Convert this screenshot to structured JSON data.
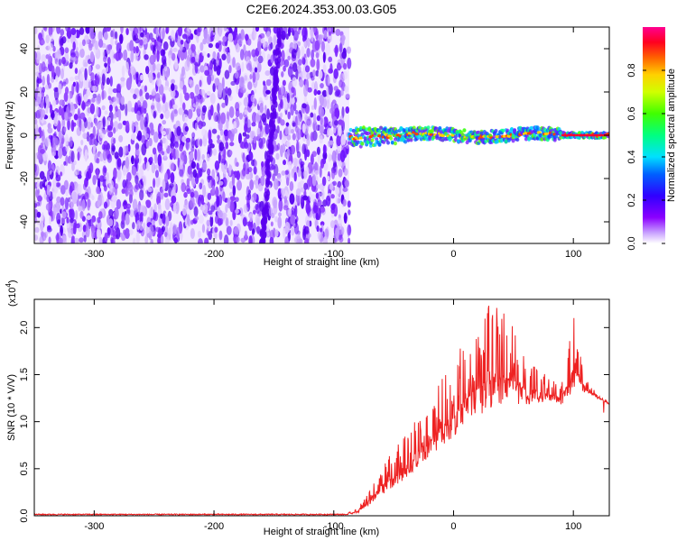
{
  "title": "C2E6.2024.353.00.03.G05",
  "chart_data": [
    {
      "type": "heatmap",
      "xlabel": "Height of straight line (km)",
      "ylabel": "Frequency (Hz)",
      "xlim": [
        -350,
        130
      ],
      "ylim": [
        -50,
        50
      ],
      "xticks": [
        -300,
        -200,
        -100,
        0,
        100
      ],
      "xtick_labels": [
        "-300",
        "-200",
        "-100",
        "0",
        "100"
      ],
      "yticks": [
        -40,
        -20,
        0,
        20,
        40
      ],
      "ytick_labels": [
        "-40",
        "-20",
        "0",
        "20",
        "40"
      ],
      "noise_region_x": [
        -350,
        -87
      ],
      "signal_line_frequency": 0,
      "colorbar": {
        "label": "Normalized spectral amplitude",
        "range": [
          0,
          1
        ],
        "ticks": [
          0.0,
          0.2,
          0.4,
          0.6,
          0.8
        ],
        "tick_labels": [
          "0.0",
          "0.2",
          "0.4",
          "0.6",
          "0.8"
        ],
        "colormap": [
          "#ffffff",
          "#8b00ff",
          "#4b00ff",
          "#0000ff",
          "#00c8ff",
          "#00ffff",
          "#00ff60",
          "#7fff00",
          "#ffff00",
          "#ffa500",
          "#ff2000",
          "#ff0080"
        ]
      }
    },
    {
      "type": "line",
      "xlabel": "Height of straight line (km)",
      "ylabel": "SNR (10 * V/V)",
      "yscale_label": "(x10",
      "yscale_exp": "4",
      "xlim": [
        -350,
        130
      ],
      "ylim": [
        0,
        2.3
      ],
      "xticks": [
        -300,
        -200,
        -100,
        0,
        100
      ],
      "xtick_labels": [
        "-300",
        "-200",
        "-100",
        "0",
        "100"
      ],
      "yticks": [
        0.0,
        0.5,
        1.0,
        1.5,
        2.0
      ],
      "ytick_labels": [
        "0.0",
        "0.5",
        "1.0",
        "1.5",
        "2.0"
      ],
      "color": "#ee2222",
      "envelope": {
        "x": [
          -350,
          -90,
          -80,
          -70,
          -60,
          -50,
          -40,
          -30,
          -20,
          -10,
          0,
          10,
          20,
          30,
          40,
          50,
          60,
          70,
          80,
          90,
          100,
          110,
          120,
          130
        ],
        "mean": [
          0.01,
          0.01,
          0.03,
          0.12,
          0.22,
          0.3,
          0.4,
          0.52,
          0.62,
          0.74,
          0.8,
          0.95,
          1.05,
          1.12,
          1.15,
          1.18,
          1.18,
          1.2,
          1.22,
          1.18,
          1.3,
          1.3,
          1.25,
          1.18
        ],
        "upper": [
          0.02,
          0.02,
          0.08,
          0.3,
          0.55,
          0.7,
          0.85,
          1.05,
          1.2,
          1.45,
          1.6,
          1.95,
          2.0,
          2.25,
          2.2,
          2.0,
          1.75,
          1.6,
          1.45,
          1.4,
          2.15,
          1.5,
          1.3,
          1.22
        ]
      }
    }
  ]
}
